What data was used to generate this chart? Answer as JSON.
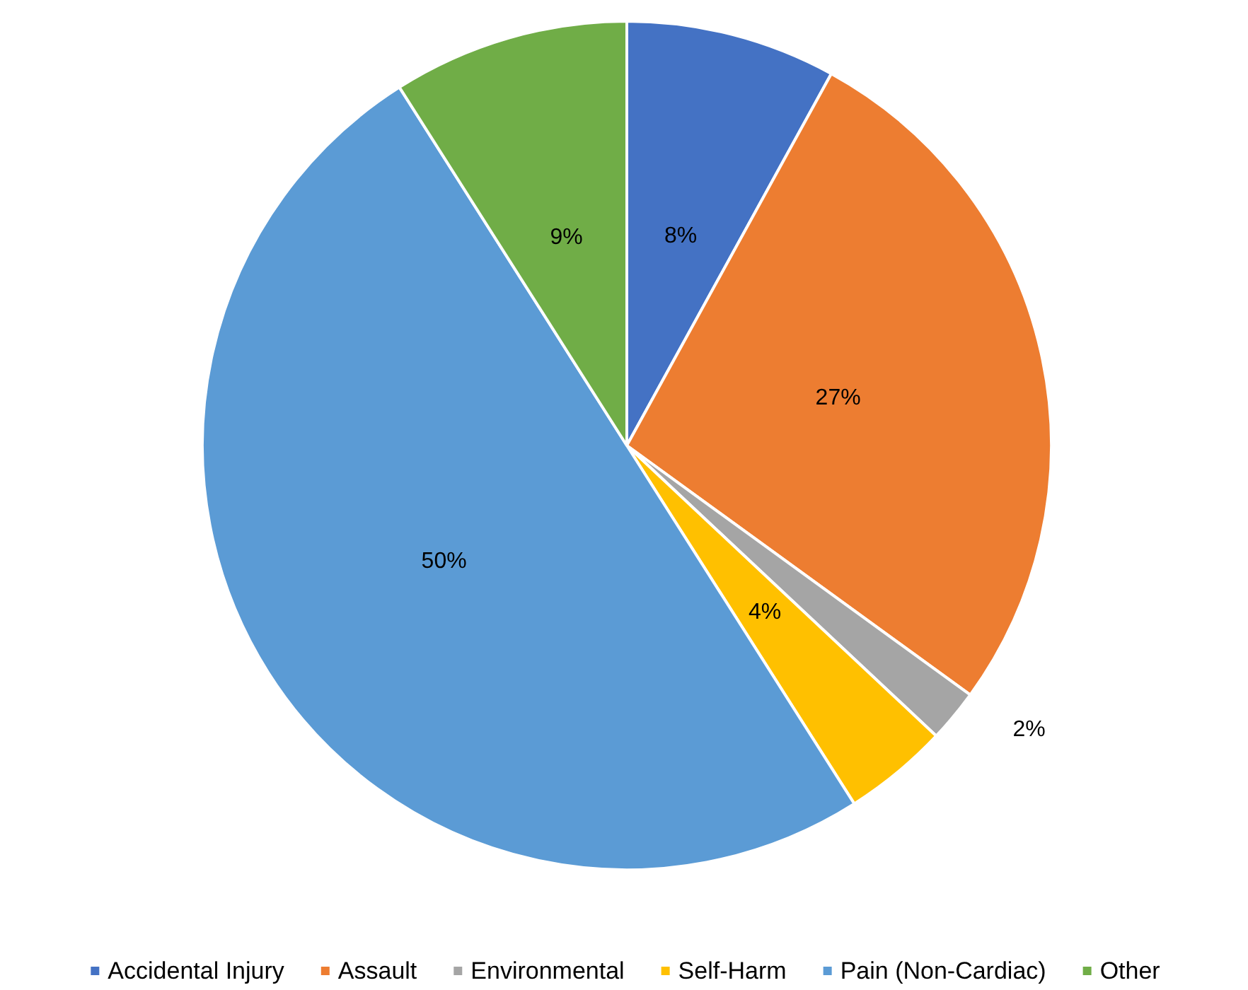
{
  "chart_data": {
    "type": "pie",
    "categories": [
      "Accidental Injury",
      "Assault",
      "Environmental",
      "Self-Harm",
      "Pain (Non-Cardiac)",
      "Other"
    ],
    "values": [
      8,
      27,
      2,
      4,
      50,
      9
    ],
    "colors": [
      "#4472c4",
      "#ed7d31",
      "#a5a5a5",
      "#ffc000",
      "#5b9bd5",
      "#70ad47"
    ],
    "value_labels": [
      "8%",
      "27%",
      "2%",
      "4%",
      "50%",
      "9%"
    ],
    "legend": "bottom"
  }
}
